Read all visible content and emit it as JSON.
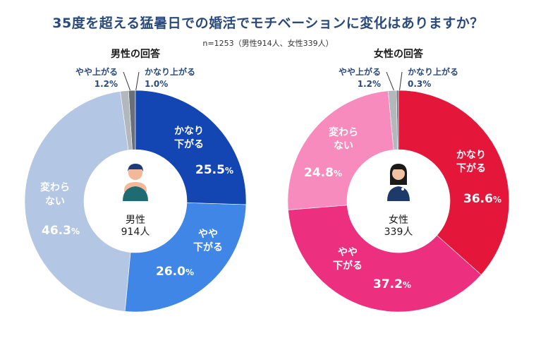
{
  "title": "35度を超える猛暑日での婚活でモチベーションに変化はありますか？",
  "sample": "n=1253（男性914人、女性339人）",
  "chart_data": [
    {
      "type": "pie",
      "title": "男性の回答",
      "center_label": [
        "男性",
        "914人"
      ],
      "categories": [
        "かなり上がる",
        "やや上がる",
        "変わらない",
        "やや下がる",
        "かなり下がる"
      ],
      "values": [
        1.0,
        1.2,
        46.3,
        26.0,
        25.5
      ],
      "colors": [
        "#6b6f78",
        "#b3b7be",
        "#b3c6e3",
        "#3f86e6",
        "#1446b3"
      ]
    },
    {
      "type": "pie",
      "title": "女性の回答",
      "center_label": [
        "女性",
        "339人"
      ],
      "categories": [
        "かなり上がる",
        "やや上がる",
        "変わらない",
        "やや下がる",
        "かなり下がる"
      ],
      "values": [
        0.3,
        1.2,
        24.8,
        37.2,
        36.6
      ],
      "colors": [
        "#6b6f78",
        "#b3b7be",
        "#f78bbd",
        "#ec2f7f",
        "#e4163a"
      ]
    }
  ]
}
